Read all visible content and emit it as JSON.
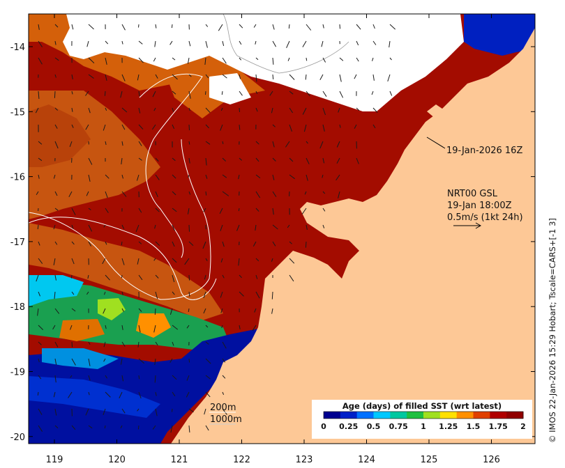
{
  "map": {
    "land_color": "#fdc896",
    "nodata_color": "#ffffff",
    "y_ticks": [
      "-14",
      "-15",
      "-16",
      "-17",
      "-18",
      "-19",
      "-20"
    ],
    "x_ticks": [
      "119",
      "120",
      "121",
      "122",
      "123",
      "124",
      "125",
      "126"
    ]
  },
  "annotations": {
    "obs_time": "19-Jan-2026 16Z",
    "model_line1": "NRT00 GSL",
    "model_line2": "19-Jan 18:00Z",
    "model_line3": "0.5m/s (1kt 24h)",
    "isobath_200": "200m",
    "isobath_1000": "1000m"
  },
  "colorbar": {
    "title": "Age (days) of filled SST (wrt latest)",
    "ticks": [
      "0",
      "0.25",
      "0.5",
      "0.75",
      "1",
      "1.25",
      "1.5",
      "1.75",
      "2"
    ],
    "colors": [
      "#00008f",
      "#0020c8",
      "#0070ff",
      "#00c8ff",
      "#00c8a0",
      "#20c040",
      "#a0e020",
      "#ffe000",
      "#ff9000",
      "#e04000",
      "#b00000",
      "#900000"
    ]
  },
  "credit": "© IMOS 22-Jan-2026 15:29 Hobart; Tscale=CARS+[-1 3]"
}
